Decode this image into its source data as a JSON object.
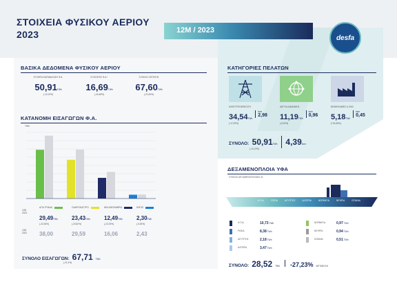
{
  "colors": {
    "navy": "#1a2b5c",
    "teal": "#6fbcc0",
    "lightgreen": "#6abf4b",
    "yellow": "#e2e22a",
    "darkblue": "#1f2a66",
    "blue": "#1d7ed6",
    "grey": "#d6d8de"
  },
  "header": {
    "title_line1": "ΣΤΟΙΧΕΙΑ ΦΥΣΙΚΟΥ ΑΕΡΙΟΥ",
    "title_line2": "2023",
    "period": "12Μ / 2023",
    "logo_text": "desfa"
  },
  "basics": {
    "title": "ΒΑΣΙΚΑ ΔΕΔΟΜΕΝΑ ΦΥΣΙΚΟΥ ΑΕΡΙΟΥ",
    "items": [
      {
        "label": "ΕΓΧΩΡΙΑ ΚΑΤΑΝΑΛΩΣΗ Φ.Α.",
        "value": "50,91",
        "unit": "TWh",
        "change": "(-10,13%)"
      },
      {
        "label": "ΕΞΑΓΩΓΕΣ Φ.Α.*",
        "value": "16,69",
        "unit": "TWh",
        "change": "(-40,48%)"
      },
      {
        "label": "ΣΥΝΟΛΟ ΖΗΤΗΣΗΣ",
        "value": "67,60",
        "unit": "TWh",
        "change": "(-21,84%)"
      }
    ]
  },
  "imports": {
    "title": "ΚΑΤΑΝΟΜΗ ΕΙΣΑΓΩΓΩΝ Φ.Α.",
    "axis_unit": "TWh",
    "row_label_2023": "12Μ 2023",
    "row_label_2022": "12Μ 2022",
    "items": [
      {
        "name": "ΑΓΙΑ ΤΡΙΑΔΑ",
        "v2023": "29,49",
        "unit": "TWh",
        "change": "(-22,36%)",
        "v2022": "38,00",
        "color": "#6abf4b"
      },
      {
        "name": "ΣΙΔΗΡΟΚΑΣΤΡΟ",
        "v2023": "23,43",
        "unit": "TWh",
        "change": "(-20,82%)",
        "v2022": "29,59",
        "color": "#e2e22a"
      },
      {
        "name": "ΝΕΑ ΜΕΣΗΜΒΡΙΑ",
        "v2023": "12,49",
        "unit": "TWh",
        "change": "(-22,25%)",
        "v2022": "16,06",
        "color": "#1f2a66"
      },
      {
        "name": "ΚΗΠΟΙ",
        "v2023": "2,30",
        "unit": "TWh",
        "change": "(-5,35%)",
        "v2022": "2,43",
        "color": "#1d7ed6"
      }
    ],
    "total_label": "ΣΥΝΟΛΟ ΕΙΣΑΓΩΓΩΝ:",
    "total_value": "67,71",
    "total_unit": "TWh",
    "total_change": "(-21,4%)"
  },
  "chart_data": {
    "type": "bar",
    "categories": [
      "ΑΓΙΑ ΤΡΙΑΔΑ",
      "ΣΙΔΗΡΟΚΑΣΤΡΟ",
      "ΝΕΑ ΜΕΣΗΜΒΡΙΑ",
      "ΚΗΠΟΙ"
    ],
    "series": [
      {
        "name": "12Μ 2023",
        "values": [
          29.49,
          23.43,
          12.49,
          2.3
        ]
      },
      {
        "name": "12Μ 2022",
        "values": [
          38.0,
          29.59,
          16.06,
          2.43
        ]
      }
    ],
    "ylabel": "TWh",
    "ylim": [
      0,
      40
    ]
  },
  "customers": {
    "title": "ΚΑΤΗΓΟΡΙΕΣ ΠΕΛΑΤΩΝ",
    "items": [
      {
        "label": "ΗΛΕΚΤΡΟΠΑΡΑΓΩΓΗ",
        "value": "34,54",
        "unit": "TWh",
        "change": "(-17,09%)",
        "sub_unit": "bcm",
        "sub_value": "2,98"
      },
      {
        "label": "ΔΙΚΤΥΑ ΔΙΑΝΟΜΗΣ",
        "value": "11,19",
        "unit": "TWh",
        "change": "(-8,15%)",
        "sub_unit": "bcm",
        "sub_value": "0,96"
      },
      {
        "label": "ΒΙΟΜΗΧΑΝΙΕΣ & CNG",
        "value": "5,18",
        "unit": "TWh",
        "change": "(+34,36%)",
        "sub_unit": "bcm",
        "sub_value": "0,45"
      }
    ],
    "total_label": "ΣΥΝΟΛΟ:",
    "total_value": "50,91",
    "total_unit": "TWh",
    "total_change": "(-10,13%)",
    "total_bcm": "4,39",
    "total_bcm_unit": "bcm"
  },
  "lng": {
    "title": "ΔΕΞΑΜΕΝΟΠΛΟΙΑ ΥΦΑ",
    "subtitle": "ΣΥΝΟΛΟ ΔΕΞΑΜΕΝΟΠΛΟΙΩΝ: 41",
    "ship_labels": [
      "Η.Π.Α.",
      "ΡΩΣΙΑ",
      "ΑΙΓΥΠΤΟΣ",
      "ΑΛΓΕΡΙΑ",
      "ΝΟΡΒΗΓΙΑ",
      "ΝΙΓΗΡΙΑ",
      "ΙΣΠΑΝΙΑ"
    ],
    "countries_left": [
      {
        "name": "Η.Π.Α.",
        "value": "10,73",
        "unit": "TWh",
        "color": "#1a2b5c"
      },
      {
        "name": "ΡΩΣΙΑ",
        "value": "8,38",
        "unit": "TWh",
        "color": "#3e6fb0"
      },
      {
        "name": "ΑΙΓΥΠΤΟΣ",
        "value": "2,18",
        "unit": "TWh",
        "color": "#7fb3d9"
      },
      {
        "name": "ΑΛΓΕΡΙΑ",
        "value": "3,47",
        "unit": "TWh",
        "color": "#a9c8ea"
      }
    ],
    "countries_right": [
      {
        "name": "ΝΟΡΒΗΓΙΑ",
        "value": "0,97",
        "unit": "TWh",
        "color": "#8fc65b"
      },
      {
        "name": "ΝΙΓΗΡΙΑ",
        "value": "0,94",
        "unit": "TWh",
        "color": "#9a9a9a"
      },
      {
        "name": "ΙΣΠΑΝΙΑ",
        "value": "0,51",
        "unit": "TWh",
        "color": "#b9b9b9"
      }
    ],
    "total_label": "ΣΥΝΟΛΟ:",
    "total_value": "28,52",
    "total_unit": "TWh",
    "total_change": "-27,23%",
    "total_change_note": "ΜΕΤΑΒΟΛΗ"
  }
}
